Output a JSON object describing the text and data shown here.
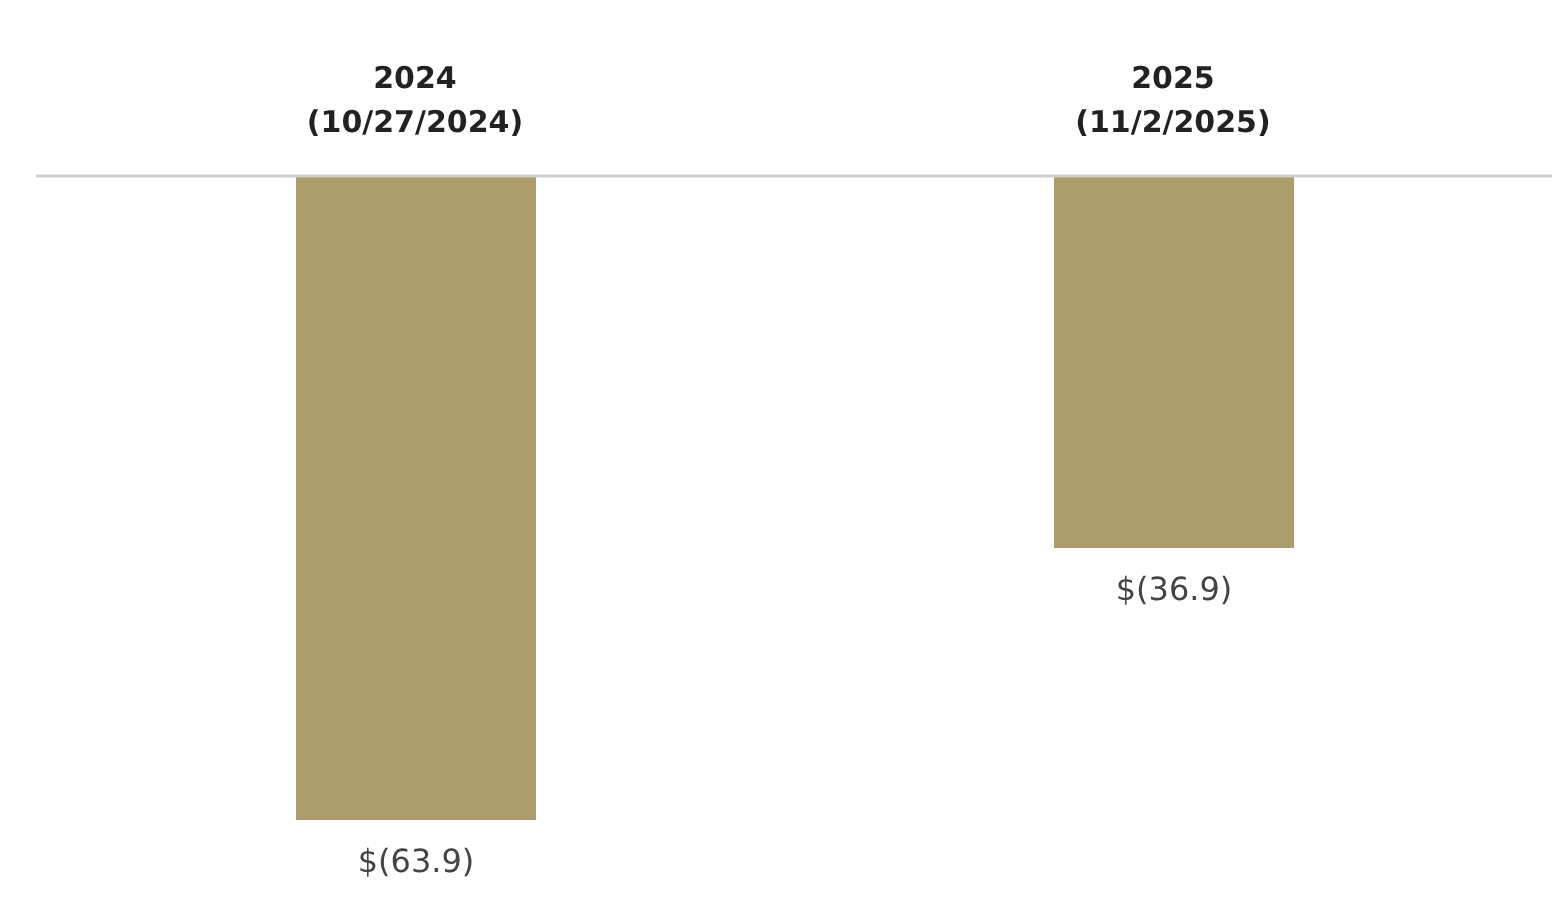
{
  "chart_data": {
    "type": "bar",
    "categories": [
      "2024\n(10/27/2024)",
      "2025\n(11/2/2025)"
    ],
    "series": [
      {
        "color": "#ad9c6c",
        "values": [
          -63.9,
          -36.9
        ],
        "value_labels": [
          "$(63.9)",
          "$(36.9)"
        ]
      }
    ],
    "grid": false,
    "legend": false
  }
}
